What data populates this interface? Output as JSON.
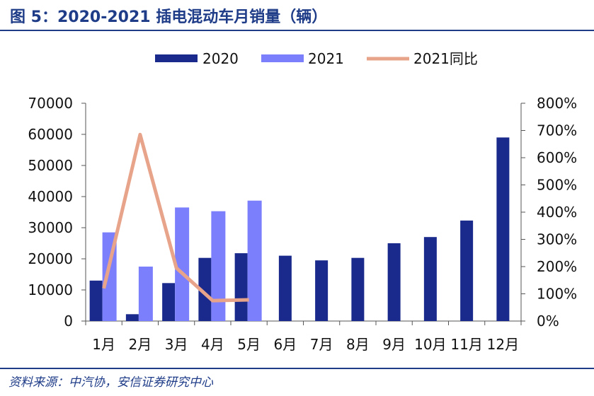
{
  "title": "图 5：2020-2021 插电混动车月销量（辆）",
  "source": "资料来源：中汽协，安信证券研究中心",
  "colors": {
    "s2020": "#1a2a8c",
    "s2021": "#7b7ffc",
    "yoy": "#e8a48a",
    "brand": "#1f3c88"
  },
  "chart_data": {
    "type": "bar",
    "categories": [
      "1月",
      "2月",
      "3月",
      "4月",
      "5月",
      "6月",
      "7月",
      "8月",
      "9月",
      "10月",
      "11月",
      "12月"
    ],
    "series": [
      {
        "name": "2020",
        "type": "bar",
        "axis": "left",
        "values": [
          13000,
          2200,
          12200,
          20300,
          21800,
          21000,
          19500,
          20300,
          25000,
          27000,
          32300,
          59000
        ]
      },
      {
        "name": "2021",
        "type": "bar",
        "axis": "left",
        "values": [
          28500,
          17500,
          36500,
          35300,
          38700,
          null,
          null,
          null,
          null,
          null,
          null,
          null
        ]
      },
      {
        "name": "2021同比",
        "type": "line",
        "axis": "right",
        "values": [
          120,
          685,
          195,
          75,
          78,
          null,
          null,
          null,
          null,
          null,
          null,
          null
        ]
      }
    ],
    "ylim": [
      0,
      70000
    ],
    "yticks": [
      "0",
      "10000",
      "20000",
      "30000",
      "40000",
      "50000",
      "60000",
      "70000"
    ],
    "y2lim": [
      0,
      800
    ],
    "y2ticks": [
      "0%",
      "100%",
      "200%",
      "300%",
      "400%",
      "500%",
      "600%",
      "700%",
      "800%"
    ],
    "legend": "top"
  }
}
